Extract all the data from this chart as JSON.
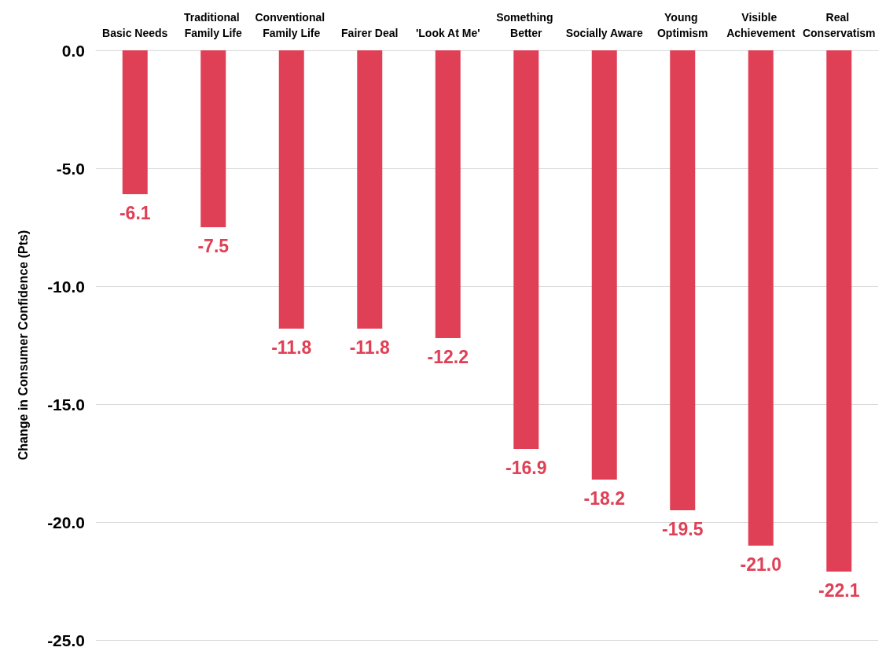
{
  "chart_data": {
    "type": "bar",
    "ylabel": "Change in Consumer Confidence (Pts)",
    "categories": [
      "Basic Needs",
      "Traditional Family Life",
      "Conventional Family Life",
      "Fairer Deal",
      "'Look At Me'",
      "Something Better",
      "Socially Aware",
      "Young Optimism",
      "Visible Achievement",
      "Real Conservatism"
    ],
    "values": [
      -6.1,
      -7.5,
      -11.8,
      -11.8,
      -12.2,
      -16.9,
      -18.2,
      -19.5,
      -21.0,
      -22.1
    ],
    "value_labels": [
      "-6.1",
      "-7.5",
      "-11.8",
      "-11.8",
      "-12.2",
      "-16.9",
      "-18.2",
      "-19.5",
      "-21.0",
      "-22.1"
    ],
    "color": "#e04055",
    "ylim": [
      -25,
      0
    ],
    "yticks": [
      {
        "value": -25,
        "label": "-25.0"
      },
      {
        "value": -20,
        "label": "-20.0"
      },
      {
        "value": -15,
        "label": "-15.0"
      },
      {
        "value": -10,
        "label": "-10.0"
      },
      {
        "value": -5,
        "label": "-5.0"
      },
      {
        "value": 0,
        "label": "0.0"
      }
    ],
    "grid": "y"
  }
}
